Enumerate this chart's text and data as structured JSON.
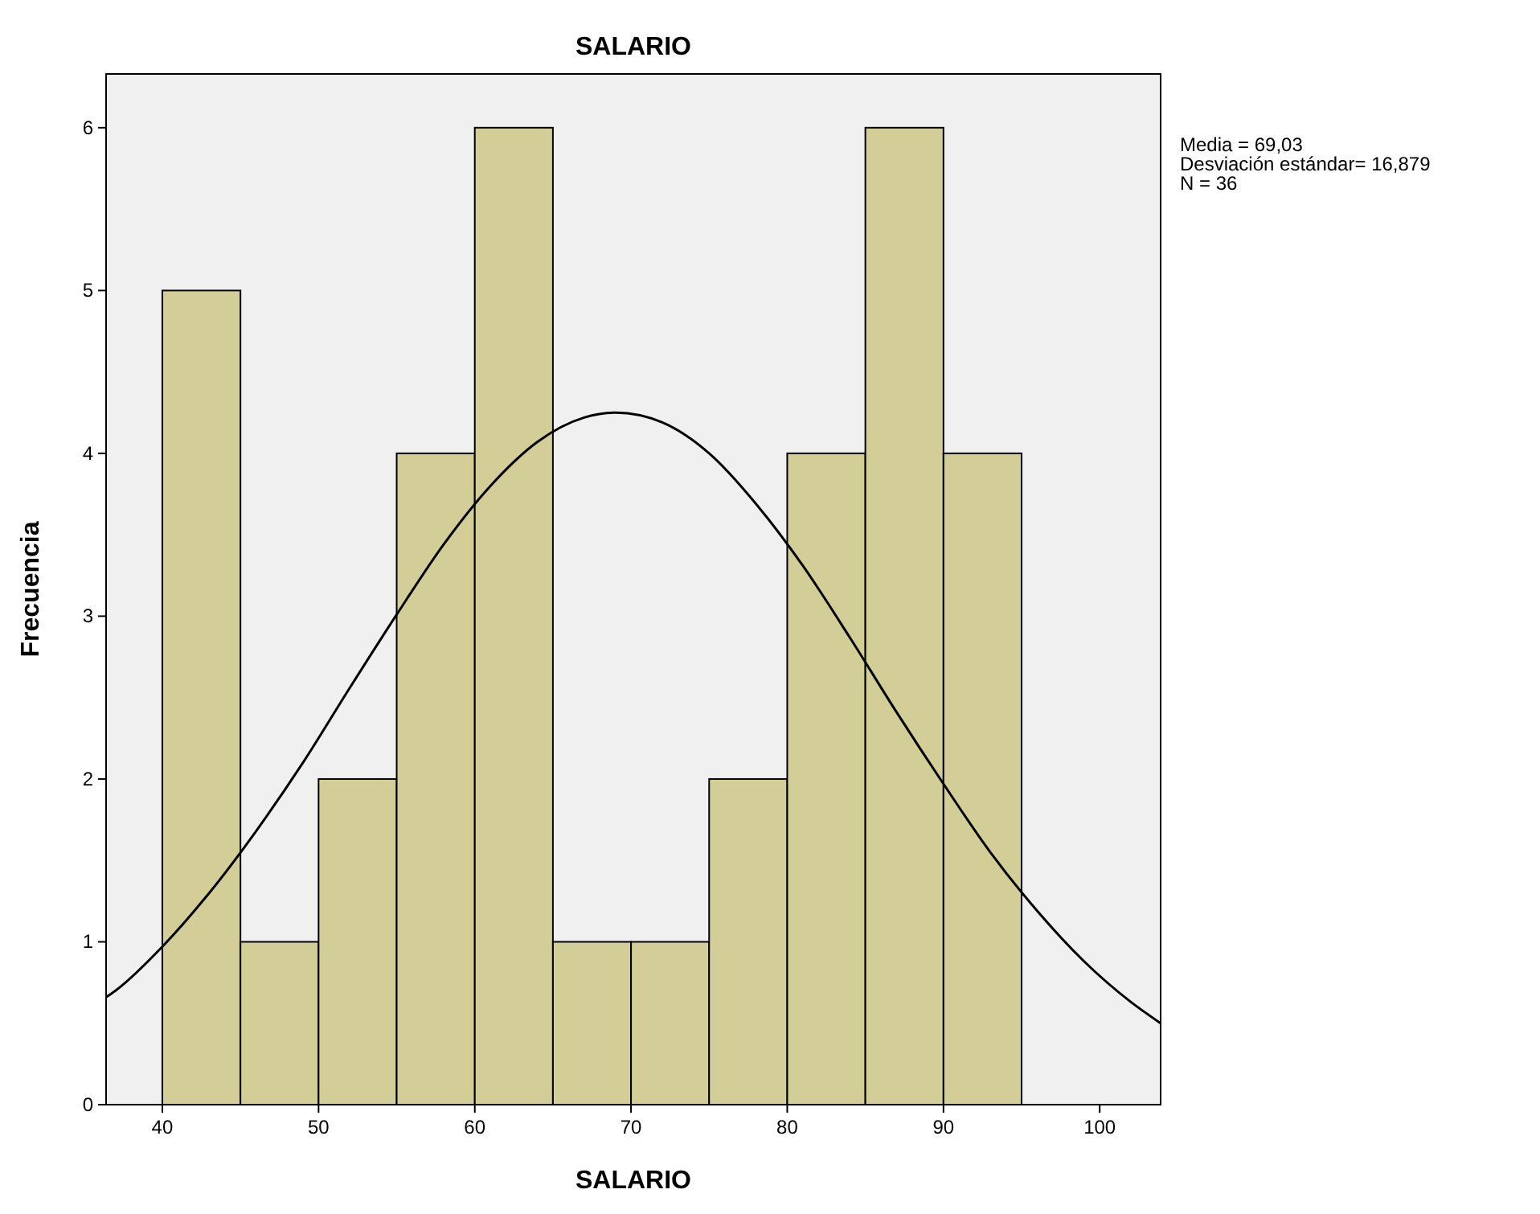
{
  "chart_data": {
    "type": "histogram",
    "title": "SALARIO",
    "xlabel": "SALARIO",
    "ylabel": "Frecuencia",
    "bins": [
      40,
      45,
      50,
      55,
      60,
      65,
      70,
      75,
      80,
      85,
      90,
      95
    ],
    "values": [
      5,
      1,
      2,
      4,
      6,
      1,
      1,
      2,
      4,
      6,
      4
    ],
    "color": "#d3ce97",
    "series": [
      {
        "type": "line",
        "color": "#000000",
        "x": [
          36.4,
          37,
          40,
          43,
          46,
          49,
          52,
          55,
          58,
          61,
          64,
          67,
          69.03,
          72,
          75,
          78,
          81,
          84,
          87,
          90,
          93,
          96,
          99,
          102,
          103.9
        ],
        "values": [
          0.66,
          0.7,
          0.97,
          1.3,
          1.68,
          2.1,
          2.56,
          3.01,
          3.44,
          3.8,
          4.07,
          4.22,
          4.25,
          4.19,
          4.0,
          3.69,
          3.31,
          2.87,
          2.41,
          1.97,
          1.55,
          1.19,
          0.88,
          0.63,
          0.5
        ]
      }
    ],
    "xlim": [
      36.4,
      103.9
    ],
    "xticks": [
      40,
      50,
      60,
      70,
      80,
      90,
      100
    ],
    "ylim": [
      0,
      6.33
    ],
    "yticks": [
      0,
      1,
      2,
      3,
      4,
      5,
      6
    ],
    "grid": false,
    "annotations": [
      "Media = 69,03",
      "Desviación estándar= 16,879",
      "N = 36"
    ]
  }
}
